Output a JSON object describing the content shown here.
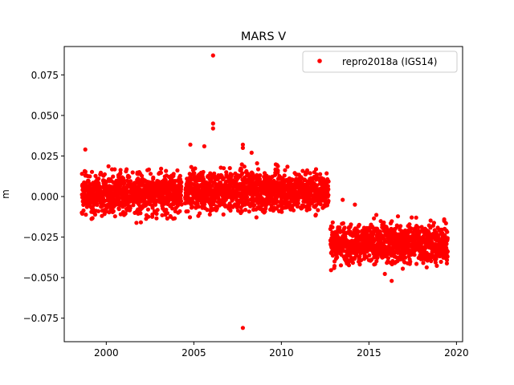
{
  "chart_data": {
    "type": "scatter",
    "title": "MARS V",
    "xlabel": "",
    "ylabel": "m",
    "xlim": [
      1997.6,
      2020.35
    ],
    "ylim": [
      -0.0895,
      0.0925
    ],
    "xticks": [
      2000,
      2005,
      2010,
      2015,
      2020
    ],
    "xtick_labels": [
      "2000",
      "2005",
      "2010",
      "2015",
      "2020"
    ],
    "yticks": [
      -0.075,
      -0.05,
      -0.025,
      0.0,
      0.025,
      0.05,
      0.075
    ],
    "ytick_labels": [
      "−0.075",
      "−0.050",
      "−0.025",
      "0.000",
      "0.025",
      "0.050",
      "0.075"
    ],
    "grid": false,
    "legend_position": "top-right",
    "series": [
      {
        "name": "repro2018a (IGS14)",
        "color": "#ff0000",
        "marker": "circle",
        "segments": [
          {
            "x_start": 1998.6,
            "x_end": 2004.3,
            "center": 0.002,
            "spread": 0.006
          },
          {
            "x_start": 2004.5,
            "x_end": 2012.7,
            "center": 0.0035,
            "spread": 0.006
          },
          {
            "x_start": 2012.8,
            "x_end": 2019.5,
            "center": -0.029,
            "spread": 0.006
          }
        ],
        "outliers": [
          {
            "x": 2006.1,
            "y": 0.087
          },
          {
            "x": 2006.1,
            "y": 0.045
          },
          {
            "x": 2006.1,
            "y": 0.042
          },
          {
            "x": 2007.8,
            "y": -0.081
          },
          {
            "x": 2007.8,
            "y": 0.032
          },
          {
            "x": 2007.8,
            "y": 0.03
          },
          {
            "x": 2008.3,
            "y": 0.027
          },
          {
            "x": 2004.8,
            "y": 0.032
          },
          {
            "x": 2005.6,
            "y": 0.031
          },
          {
            "x": 1998.8,
            "y": 0.029
          },
          {
            "x": 2013.5,
            "y": -0.002
          },
          {
            "x": 2014.2,
            "y": -0.005
          },
          {
            "x": 2016.3,
            "y": -0.052
          },
          {
            "x": 2019.3,
            "y": -0.015
          },
          {
            "x": 2017.7,
            "y": -0.013
          }
        ]
      }
    ]
  }
}
